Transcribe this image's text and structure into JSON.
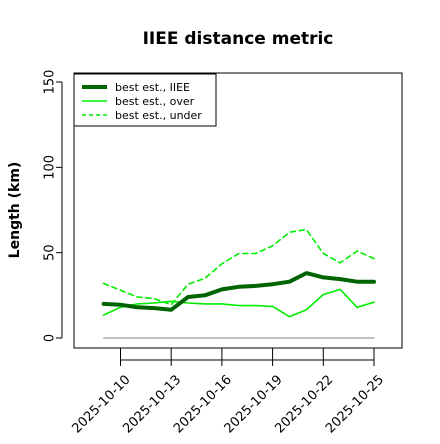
{
  "chart_data": {
    "type": "line",
    "title": "IIEE distance metric",
    "ylabel": "Length (km)",
    "xlabel": "",
    "ylim": [
      0,
      155
    ],
    "yticks": [
      0,
      50,
      100,
      150
    ],
    "xticks": [
      "2025-10-10",
      "2025-10-13",
      "2025-10-16",
      "2025-10-19",
      "2025-10-22",
      "2025-10-25"
    ],
    "x": [
      "2025-10-09",
      "2025-10-10",
      "2025-10-11",
      "2025-10-12",
      "2025-10-13",
      "2025-10-14",
      "2025-10-15",
      "2025-10-16",
      "2025-10-17",
      "2025-10-18",
      "2025-10-19",
      "2025-10-20",
      "2025-10-21",
      "2025-10-22",
      "2025-10-23",
      "2025-10-24",
      "2025-10-25"
    ],
    "legend_position": "top-left",
    "grid": false,
    "series": [
      {
        "name": "best est., IIEE",
        "color": "#006400",
        "style": "solid-thick",
        "values": [
          20,
          19.5,
          18,
          17.5,
          16.5,
          24,
          25,
          28.5,
          30,
          30.5,
          31.5,
          33,
          38,
          35.5,
          34.5,
          33,
          33
        ]
      },
      {
        "name": "best est., over",
        "color": "#00ee00",
        "style": "solid",
        "values": [
          13.5,
          18,
          20,
          20.5,
          21.5,
          20.5,
          20,
          20,
          19,
          19,
          18.5,
          12.5,
          16.5,
          25.5,
          28.5,
          18,
          21
        ]
      },
      {
        "name": "best est., under",
        "color": "#00ee00",
        "style": "dashed",
        "values": [
          32,
          28,
          24,
          23,
          19.5,
          31.5,
          35,
          43.5,
          49.5,
          49.5,
          54,
          62,
          63.5,
          49.5,
          44,
          51,
          46.5
        ]
      },
      {
        "name": "",
        "color": "#999999",
        "style": "solid-thin",
        "values": [
          0,
          0,
          0,
          0,
          0,
          0,
          0,
          0,
          0,
          0,
          0,
          0,
          0,
          0,
          0,
          0,
          0
        ]
      }
    ]
  }
}
